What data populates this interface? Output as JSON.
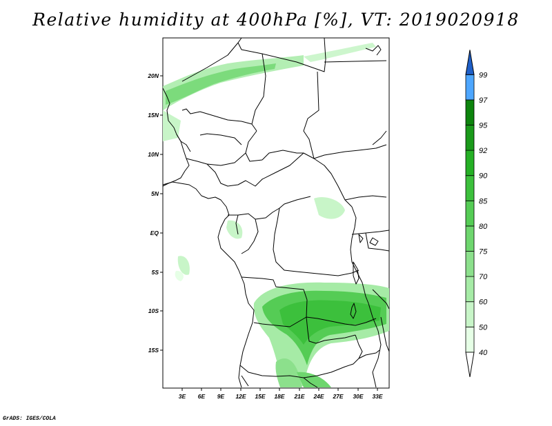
{
  "title": "Relative humidity at 400hPa [%], VT: 2019020918",
  "credit": "GrADS: IGES/COLA",
  "map": {
    "lon_range": [
      0,
      34.5
    ],
    "lat_range": [
      -20,
      24.5
    ],
    "lon_ticks": [
      "3E",
      "6E",
      "9E",
      "12E",
      "15E",
      "18E",
      "21E",
      "24E",
      "27E",
      "30E",
      "33E"
    ],
    "lat_ticks": [
      "20N",
      "15N",
      "10N",
      "5N",
      "EQ",
      "5S",
      "10S",
      "15S"
    ]
  },
  "colorbar": {
    "labels": [
      "40",
      "50",
      "60",
      "70",
      "75",
      "80",
      "85",
      "90",
      "92",
      "95",
      "97",
      "99"
    ],
    "colors": [
      "#ffffff",
      "#e6ffe6",
      "#c8f5c8",
      "#a6eba6",
      "#8ce08c",
      "#6ed66e",
      "#55cc55",
      "#3cc03c",
      "#25b025",
      "#1a9a1a",
      "#0d840d",
      "#4da6ff",
      "#2e7de0",
      "#1e5fc8"
    ]
  }
}
